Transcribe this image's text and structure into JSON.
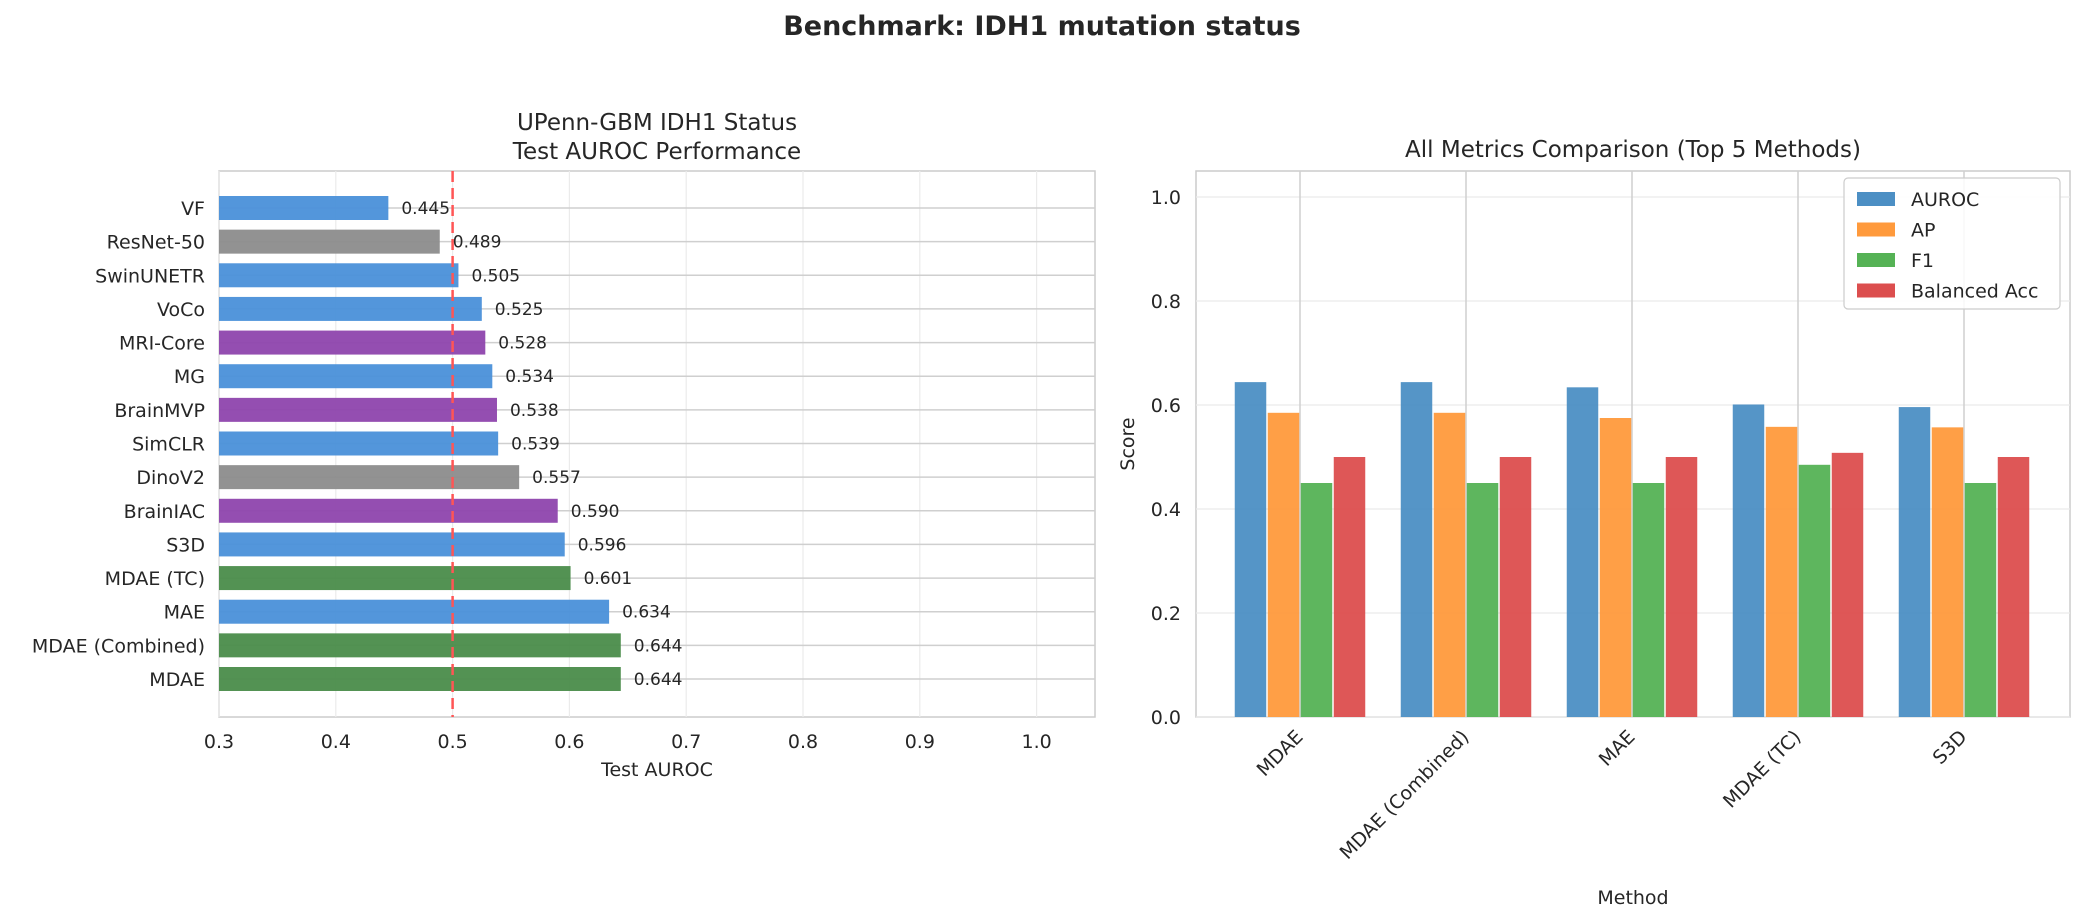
{
  "figure_title": "Benchmark: IDH1 mutation status",
  "colors": {
    "blue": "#4a90d9",
    "gray": "#8c8c8c",
    "purple": "#8e44ad",
    "green": "#4a8c4a",
    "reference_line": "#ff5555",
    "auroc": "#4c8fc4",
    "ap": "#ff9a3c",
    "f1": "#55b255",
    "balanced_acc": "#dc4e4e"
  },
  "chart_data": [
    {
      "type": "bar",
      "orientation": "horizontal",
      "title": "UPenn-GBM IDH1 Status\nTest AUROC Performance",
      "xlabel": "Test AUROC",
      "ylabel": "",
      "xlim": [
        0.3,
        1.05
      ],
      "xticks": [
        "0.3",
        "0.4",
        "0.5",
        "0.6",
        "0.7",
        "0.8",
        "0.9",
        "1.0"
      ],
      "grid": true,
      "reference_line": 0.5,
      "categories": [
        "VF",
        "ResNet-50",
        "SwinUNETR",
        "VoCo",
        "MRI-Core",
        "MG",
        "BrainMVP",
        "SimCLR",
        "DinoV2",
        "BrainIAC",
        "S3D",
        "MDAE (TC)",
        "MAE",
        "MDAE (Combined)",
        "MDAE"
      ],
      "values": [
        0.445,
        0.489,
        0.505,
        0.525,
        0.528,
        0.534,
        0.538,
        0.539,
        0.557,
        0.59,
        0.596,
        0.601,
        0.634,
        0.644,
        0.644
      ],
      "value_labels": [
        "0.445",
        "0.489",
        "0.505",
        "0.525",
        "0.528",
        "0.534",
        "0.538",
        "0.539",
        "0.557",
        "0.590",
        "0.596",
        "0.601",
        "0.634",
        "0.644",
        "0.644"
      ],
      "bar_colors": [
        "blue",
        "gray",
        "blue",
        "blue",
        "purple",
        "blue",
        "purple",
        "blue",
        "gray",
        "purple",
        "blue",
        "green",
        "blue",
        "green",
        "green"
      ]
    },
    {
      "type": "bar",
      "orientation": "vertical",
      "title": "All Metrics Comparison (Top 5 Methods)",
      "xlabel": "Method",
      "ylabel": "Score",
      "ylim": [
        0,
        1.05
      ],
      "yticks": [
        "0.0",
        "0.2",
        "0.4",
        "0.6",
        "0.8",
        "1.0"
      ],
      "grid": true,
      "legend_position": "top-right",
      "categories": [
        "MDAE",
        "MDAE (Combined)",
        "MAE",
        "MDAE (TC)",
        "S3D"
      ],
      "series": [
        {
          "name": "AUROC",
          "color": "auroc",
          "values": [
            0.644,
            0.644,
            0.634,
            0.601,
            0.596
          ]
        },
        {
          "name": "AP",
          "color": "ap",
          "values": [
            0.585,
            0.585,
            0.575,
            0.558,
            0.557
          ]
        },
        {
          "name": "F1",
          "color": "f1",
          "values": [
            0.45,
            0.45,
            0.45,
            0.485,
            0.45
          ]
        },
        {
          "name": "Balanced Acc",
          "color": "balanced_acc",
          "values": [
            0.5,
            0.5,
            0.5,
            0.508,
            0.5
          ]
        }
      ]
    }
  ]
}
